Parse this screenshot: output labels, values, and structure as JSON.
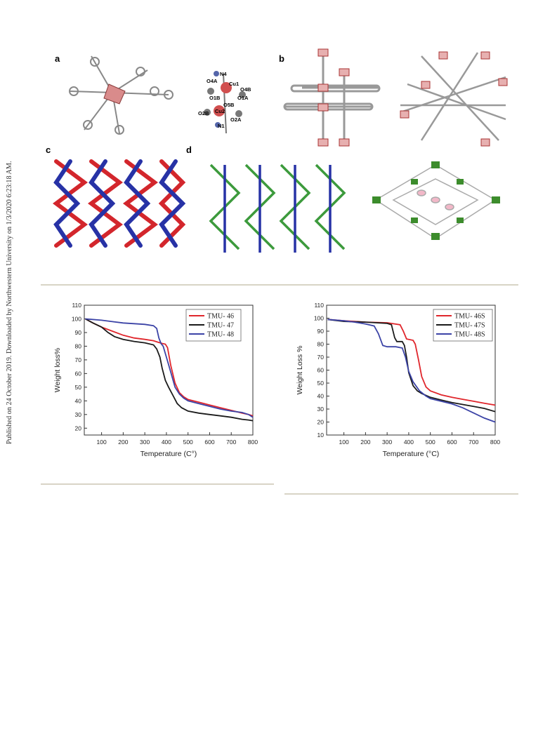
{
  "side_note": "Published on 24 October 2019. Downloaded by Northwestern University on 1/3/2020 6:23:18 AM.",
  "figure_top": {
    "panels": [
      "a",
      "b",
      "c",
      "d"
    ],
    "atom_labels": [
      "N4",
      "Cu1",
      "O4A",
      "O4B",
      "O1B",
      "O1A",
      "O5B",
      "O2B",
      "Cu2",
      "O2A",
      "N1"
    ]
  },
  "chart_data": [
    {
      "type": "line",
      "xlabel": "Temperature (C°)",
      "ylabel": "Weight loss%",
      "xlim": [
        20,
        800
      ],
      "ylim": [
        15,
        110
      ],
      "xticks": [
        100,
        200,
        300,
        400,
        500,
        600,
        700,
        800
      ],
      "yticks": [
        20,
        30,
        40,
        50,
        60,
        70,
        80,
        90,
        100,
        110
      ],
      "legend_position": "top-right",
      "series": [
        {
          "name": "TMU- 46",
          "color": "#e0262c",
          "x": [
            25,
            60,
            100,
            150,
            200,
            250,
            300,
            340,
            360,
            380,
            395,
            405,
            420,
            440,
            460,
            480,
            500,
            550,
            600,
            650,
            700,
            750,
            780,
            800
          ],
          "y": [
            100,
            97,
            94,
            91,
            88,
            86,
            85,
            84,
            83,
            82,
            81.5,
            79,
            66,
            53,
            46,
            43,
            41,
            39,
            37,
            35,
            33,
            31,
            30,
            29
          ]
        },
        {
          "name": "TMU- 47",
          "color": "#1a1a1a",
          "x": [
            25,
            60,
            100,
            130,
            160,
            200,
            250,
            300,
            340,
            355,
            370,
            380,
            395,
            410,
            430,
            450,
            470,
            500,
            550,
            600,
            650,
            700,
            750,
            780,
            800
          ],
          "y": [
            100,
            97,
            94,
            90,
            87,
            85,
            83.5,
            82.5,
            81,
            78,
            72,
            64,
            55,
            50,
            44,
            38,
            35,
            32.5,
            31,
            30,
            29,
            28,
            26.5,
            26,
            25.5
          ]
        },
        {
          "name": "TMU- 48",
          "color": "#3b43a6",
          "x": [
            25,
            100,
            150,
            200,
            250,
            300,
            340,
            355,
            365,
            375,
            385,
            400,
            420,
            440,
            460,
            480,
            500,
            550,
            600,
            650,
            700,
            750,
            780,
            800
          ],
          "y": [
            100,
            99,
            98,
            97,
            96.5,
            96,
            95,
            93,
            86,
            82,
            80,
            72,
            61,
            50,
            45,
            42,
            40,
            38,
            36,
            34,
            32.5,
            31.5,
            30,
            28
          ]
        }
      ]
    },
    {
      "type": "line",
      "xlabel": "Temperature (°C)",
      "ylabel": "Weight Loss %",
      "xlim": [
        20,
        800
      ],
      "ylim": [
        10,
        110
      ],
      "xticks": [
        100,
        200,
        300,
        400,
        500,
        600,
        700,
        800
      ],
      "yticks": [
        10,
        20,
        30,
        40,
        50,
        60,
        70,
        80,
        90,
        100,
        110
      ],
      "legend_position": "top-right",
      "series": [
        {
          "name": "TMU- 46S",
          "color": "#e0262c",
          "x": [
            25,
            100,
            200,
            300,
            360,
            375,
            390,
            420,
            430,
            445,
            460,
            480,
            500,
            550,
            600,
            650,
            700,
            750,
            800
          ],
          "y": [
            99,
            98,
            97,
            96.5,
            95,
            90,
            84,
            83,
            80,
            68,
            55,
            47,
            44,
            41,
            39,
            37.5,
            36,
            34.5,
            33
          ]
        },
        {
          "name": "TMU- 47S",
          "color": "#1a1a1a",
          "x": [
            25,
            100,
            200,
            300,
            320,
            335,
            345,
            370,
            380,
            390,
            400,
            420,
            440,
            460,
            500,
            550,
            600,
            650,
            700,
            750,
            800
          ],
          "y": [
            99,
            97.5,
            97,
            96,
            95,
            85,
            82,
            82,
            79,
            70,
            58,
            48,
            44,
            42,
            39,
            37,
            35,
            33.5,
            32,
            30.5,
            28
          ]
        },
        {
          "name": "TMU- 48S",
          "color": "#3b43a6",
          "x": [
            25,
            100,
            150,
            200,
            240,
            260,
            280,
            300,
            340,
            370,
            385,
            400,
            420,
            450,
            480,
            500,
            550,
            600,
            650,
            700,
            750,
            800
          ],
          "y": [
            99,
            98,
            97,
            95.5,
            94,
            88,
            79,
            78,
            78,
            77,
            70,
            59,
            51,
            44,
            40,
            38,
            36,
            34,
            31,
            27,
            23,
            20
          ]
        }
      ]
    }
  ]
}
